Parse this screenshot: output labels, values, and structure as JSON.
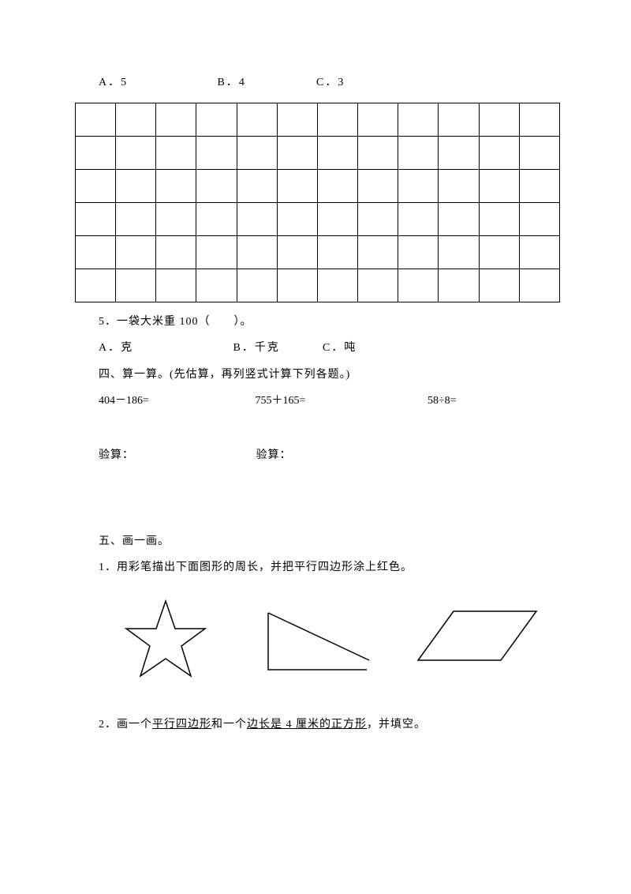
{
  "q4_options": {
    "a": "A．5",
    "b": "B．4",
    "c": "C．3"
  },
  "grid": {
    "rows": 6,
    "cols": 12
  },
  "q5": {
    "stem": "5．一袋大米重 100（　　）。",
    "a": "A．克",
    "b": "B．千克",
    "c": "C．吨"
  },
  "section4": {
    "title": "四、算一算。(先估算，再列竖式计算下列各题。)",
    "eq1": "404－186=",
    "eq2": "755＋165=",
    "eq3": "58÷8=",
    "check1": "验算：",
    "check2": "验算："
  },
  "section5": {
    "title": "五、画一画。",
    "q1": "1．用彩笔描出下面图形的周长，并把平行四边形涂上红色。",
    "q2_pre": "2．画一个",
    "q2_u1": "平行四边形",
    "q2_mid": "和一个",
    "q2_u2": "边长是 4 厘米的正方形",
    "q2_post": "，并填空。"
  },
  "shapes": {
    "stroke": "#000000",
    "strokeWidth": 1.5
  }
}
